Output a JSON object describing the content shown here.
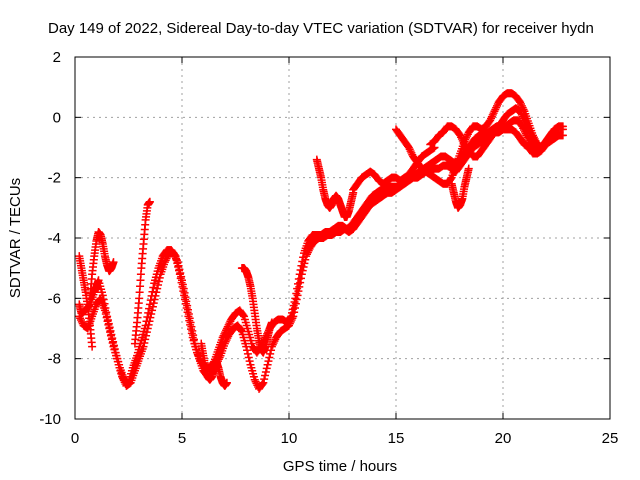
{
  "chart_data": {
    "type": "scatter",
    "title": "Day 149 of 2022, Sidereal Day-to-day VTEC variation (SDTVAR) for receiver hydn",
    "xlabel": "GPS time / hours",
    "ylabel": "SDTVAR / TECUs",
    "xlim": [
      0,
      25
    ],
    "ylim": [
      -10,
      2
    ],
    "xticks": [
      "0",
      "5",
      "10",
      "15",
      "20",
      "25"
    ],
    "yticks": [
      "-10",
      "-8",
      "-6",
      "-4",
      "-2",
      "0",
      "2"
    ],
    "grid": true,
    "marker": "+",
    "series": [
      {
        "name": "SDTVAR",
        "color": "#ff0000",
        "tracks": [
          {
            "x": [
              0.2,
              0.3,
              0.5,
              0.7,
              0.9,
              1.0,
              1.1,
              1.3,
              1.5,
              1.7,
              1.9,
              2.1,
              2.3,
              2.5,
              2.7,
              2.9,
              3.1,
              3.3,
              3.5,
              3.7,
              3.9,
              4.1,
              4.3,
              4.5,
              4.7,
              4.9,
              5.1,
              5.3,
              5.5,
              5.7,
              5.9,
              6.1,
              6.3,
              6.5,
              6.7,
              6.9,
              7.1,
              7.3,
              7.5,
              7.7,
              7.9,
              8.1,
              8.3,
              8.5,
              8.7,
              8.9,
              9.1,
              9.3,
              9.5,
              9.7,
              9.9,
              10.1,
              10.3,
              10.5,
              10.7,
              10.9,
              11.1,
              11.3,
              11.5,
              11.7,
              11.9,
              12.1,
              12.3,
              12.5,
              12.7,
              12.9,
              13.1,
              13.3,
              13.5,
              13.7,
              13.9,
              14.1,
              14.3,
              14.5,
              14.7,
              14.9,
              15.1,
              15.3,
              15.5,
              15.7,
              15.9,
              16.1,
              16.3,
              16.5,
              16.7,
              16.9,
              17.1,
              17.3,
              17.5,
              17.7,
              17.9,
              18.1,
              18.3,
              18.5,
              18.7,
              18.9,
              19.1,
              19.3,
              19.5,
              19.7,
              19.9,
              20.1,
              20.3,
              20.5,
              20.7,
              20.9,
              21.1,
              21.3,
              21.5,
              21.7,
              21.9,
              22.1,
              22.3,
              22.5,
              22.8
            ],
            "y": [
              -6.2,
              -6.5,
              -6.4,
              -6.2,
              -5.8,
              -5.6,
              -5.4,
              -5.9,
              -6.6,
              -7.2,
              -7.8,
              -8.3,
              -8.7,
              -8.8,
              -8.3,
              -7.9,
              -7.4,
              -6.9,
              -6.2,
              -5.5,
              -5.0,
              -4.6,
              -4.4,
              -4.4,
              -4.6,
              -5.2,
              -5.9,
              -6.6,
              -7.3,
              -7.8,
              -8.1,
              -8.3,
              -8.3,
              -8.1,
              -7.7,
              -7.3,
              -7.0,
              -6.7,
              -6.5,
              -6.4,
              -6.6,
              -7.1,
              -7.6,
              -7.8,
              -7.6,
              -7.3,
              -7.0,
              -6.8,
              -6.7,
              -6.7,
              -6.8,
              -6.6,
              -6.0,
              -5.2,
              -4.5,
              -4.1,
              -3.9,
              -3.9,
              -3.9,
              -3.8,
              -3.8,
              -3.7,
              -3.6,
              -3.6,
              -3.7,
              -3.6,
              -3.4,
              -3.2,
              -3.0,
              -2.8,
              -2.6,
              -2.5,
              -2.4,
              -2.3,
              -2.3,
              -2.3,
              -2.3,
              -2.2,
              -2.1,
              -2.0,
              -1.9,
              -1.8,
              -1.7,
              -1.6,
              -1.5,
              -1.4,
              -1.3,
              -1.3,
              -1.4,
              -1.5,
              -1.5,
              -1.3,
              -1.1,
              -0.9,
              -0.7,
              -0.6,
              -0.5,
              -0.5,
              -0.4,
              -0.3,
              -0.3,
              -0.3,
              -0.2,
              -0.1,
              -0.1,
              -0.3,
              -0.6,
              -0.9,
              -1.1,
              -1.1,
              -0.9,
              -0.7,
              -0.5,
              -0.4,
              -0.4
            ]
          },
          {
            "x": [
              0.2,
              0.4,
              0.6,
              0.8,
              1.0,
              1.2,
              1.4,
              1.6,
              1.8,
              2.0,
              2.2,
              2.4,
              2.6,
              2.8,
              3.0,
              3.2,
              3.4,
              3.6,
              3.8,
              4.0,
              4.2,
              4.4,
              4.6,
              4.8,
              5.0,
              5.2,
              5.4,
              5.6,
              5.8,
              6.0,
              6.2,
              6.4,
              6.6,
              6.8,
              7.0,
              7.2,
              7.4,
              7.6,
              7.8,
              8.0,
              8.2,
              8.4,
              8.6,
              8.8,
              9.0,
              9.2,
              9.4,
              9.6,
              9.8,
              10.0,
              10.2,
              10.4,
              10.6,
              10.8,
              11.0,
              11.2,
              11.4,
              11.6,
              11.8,
              12.0,
              12.2,
              12.4,
              12.6,
              12.8,
              13.0,
              13.2,
              13.4,
              13.6,
              13.8,
              14.0,
              14.2,
              14.4,
              14.6,
              14.8,
              15.0,
              15.2,
              15.4,
              15.6,
              15.8,
              16.0,
              16.2,
              16.4,
              16.6,
              16.8,
              17.0,
              17.2,
              17.4,
              17.6,
              17.8,
              18.0,
              18.2,
              18.4,
              18.6,
              18.8,
              19.0,
              19.2,
              19.4,
              19.6,
              19.8,
              20.0,
              20.2,
              20.4,
              20.6,
              20.8,
              21.0,
              21.2,
              21.4,
              21.6,
              21.8,
              22.0,
              22.2,
              22.4,
              22.6,
              22.8
            ],
            "y": [
              -6.6,
              -6.9,
              -7.0,
              -6.6,
              -6.2,
              -6.0,
              -6.4,
              -7.0,
              -7.6,
              -8.1,
              -8.6,
              -8.9,
              -8.8,
              -8.4,
              -8.0,
              -7.6,
              -7.0,
              -6.4,
              -5.8,
              -5.2,
              -4.8,
              -4.5,
              -4.5,
              -4.8,
              -5.4,
              -6.1,
              -6.8,
              -7.5,
              -8.0,
              -8.4,
              -8.6,
              -8.5,
              -8.2,
              -7.9,
              -7.5,
              -7.2,
              -7.0,
              -6.9,
              -7.1,
              -7.6,
              -8.2,
              -8.7,
              -9.0,
              -8.8,
              -8.2,
              -7.6,
              -7.3,
              -7.1,
              -7.0,
              -6.9,
              -6.6,
              -5.9,
              -5.2,
              -4.6,
              -4.3,
              -4.1,
              -4.0,
              -4.0,
              -3.9,
              -3.9,
              -3.8,
              -3.8,
              -3.7,
              -3.8,
              -3.7,
              -3.5,
              -3.3,
              -3.1,
              -2.9,
              -2.8,
              -2.7,
              -2.6,
              -2.5,
              -2.5,
              -2.4,
              -2.3,
              -2.2,
              -2.1,
              -2.0,
              -2.0,
              -1.9,
              -1.8,
              -1.8,
              -1.7,
              -1.7,
              -1.6,
              -1.6,
              -1.7,
              -1.8,
              -1.6,
              -1.4,
              -1.2,
              -1.0,
              -0.9,
              -0.8,
              -0.7,
              -0.6,
              -0.5,
              -0.5,
              -0.4,
              -0.4,
              -0.4,
              -0.5,
              -0.7,
              -0.9,
              -1.0,
              -1.2,
              -1.2,
              -1.1,
              -0.9,
              -0.8,
              -0.7,
              -0.6,
              -0.6
            ]
          },
          {
            "x": [
              0.7,
              0.8,
              0.9,
              1.0,
              1.1,
              1.2,
              1.3,
              1.4,
              1.5,
              1.6,
              1.7,
              1.8
            ],
            "y": [
              -6.0,
              -5.2,
              -4.6,
              -4.1,
              -3.8,
              -3.9,
              -4.2,
              -4.6,
              -4.9,
              -5.1,
              -5.0,
              -4.8
            ]
          },
          {
            "x": [
              2.8,
              2.9,
              3.0,
              3.1,
              3.2,
              3.3,
              3.4,
              3.5
            ],
            "y": [
              -7.5,
              -6.8,
              -6.0,
              -5.0,
              -4.2,
              -3.4,
              -2.9,
              -2.8
            ]
          },
          {
            "x": [
              0.2,
              0.3,
              0.4,
              0.5,
              0.6,
              0.7,
              0.8
            ],
            "y": [
              -4.6,
              -5.0,
              -5.4,
              -5.8,
              -6.3,
              -6.9,
              -7.6
            ]
          },
          {
            "x": [
              7.8,
              7.9,
              8.0,
              8.1,
              8.2,
              8.3,
              8.4,
              8.5,
              8.6,
              8.7,
              8.8,
              8.9,
              9.0,
              9.1,
              9.2
            ],
            "y": [
              -5.0,
              -5.0,
              -5.1,
              -5.3,
              -5.6,
              -6.0,
              -6.5,
              -7.0,
              -7.4,
              -7.7,
              -7.8,
              -7.6,
              -7.3,
              -7.0,
              -6.8
            ]
          },
          {
            "x": [
              5.9,
              6.0,
              6.1,
              6.2,
              6.3,
              6.4,
              6.5,
              6.6,
              6.7,
              6.8,
              6.9,
              7.0,
              7.1
            ],
            "y": [
              -7.5,
              -7.9,
              -8.3,
              -8.6,
              -8.7,
              -8.6,
              -8.3,
              -8.1,
              -8.3,
              -8.6,
              -8.8,
              -8.9,
              -8.8
            ]
          },
          {
            "x": [
              11.3,
              11.4,
              11.5,
              11.6,
              11.7,
              11.8,
              11.9,
              12.0,
              12.1,
              12.2,
              12.3,
              12.4,
              12.5,
              12.6,
              12.7,
              12.8,
              12.9,
              13.0
            ],
            "y": [
              -1.4,
              -1.7,
              -2.0,
              -2.4,
              -2.7,
              -2.9,
              -3.0,
              -2.9,
              -2.7,
              -2.6,
              -2.7,
              -2.9,
              -3.1,
              -3.3,
              -3.3,
              -3.1,
              -2.8,
              -2.5
            ]
          },
          {
            "x": [
              13.0,
              13.2,
              13.4,
              13.6,
              13.8,
              14.0,
              14.2,
              14.4,
              14.6,
              14.8,
              15.0,
              15.2,
              15.4,
              15.6,
              15.8,
              16.0,
              16.2,
              16.4,
              16.6,
              16.8
            ],
            "y": [
              -2.4,
              -2.2,
              -2.0,
              -1.9,
              -1.8,
              -1.9,
              -2.1,
              -2.2,
              -2.1,
              -2.0,
              -2.0,
              -2.1,
              -2.0,
              -1.9,
              -1.7,
              -1.5,
              -1.3,
              -1.2,
              -1.1,
              -1.0
            ]
          },
          {
            "x": [
              15.0,
              15.2,
              15.4,
              15.6,
              15.8,
              16.0,
              16.2,
              16.4,
              16.6,
              16.8,
              17.0,
              17.2,
              17.4,
              17.6,
              17.8,
              18.0,
              18.2,
              18.4,
              18.6,
              18.8,
              19.0,
              19.2,
              19.4,
              19.6,
              19.8,
              20.0,
              20.2,
              20.4,
              20.6,
              20.8,
              21.0,
              21.2,
              21.4,
              21.6,
              21.8,
              22.0,
              22.2,
              22.4,
              22.6,
              22.8
            ],
            "y": [
              -0.4,
              -0.6,
              -0.8,
              -1.0,
              -1.3,
              -1.5,
              -1.7,
              -1.8,
              -1.9,
              -2.0,
              -2.1,
              -2.2,
              -2.2,
              -2.0,
              -1.6,
              -1.2,
              -0.8,
              -0.5,
              -0.3,
              -0.3,
              -0.4,
              -0.3,
              -0.1,
              0.2,
              0.5,
              0.7,
              0.8,
              0.8,
              0.7,
              0.5,
              0.2,
              -0.2,
              -0.6,
              -0.9,
              -1.0,
              -0.8,
              -0.6,
              -0.4,
              -0.3,
              -0.3
            ]
          },
          {
            "x": [
              16.6,
              16.8,
              17.0,
              17.2,
              17.4,
              17.6,
              17.8,
              18.0,
              18.2,
              18.4,
              18.6,
              18.8,
              19.0,
              19.2,
              19.4,
              19.6,
              19.8,
              20.0,
              20.2,
              20.4,
              20.6,
              20.8,
              21.0,
              21.2,
              21.4,
              21.6,
              21.8
            ],
            "y": [
              -0.9,
              -0.8,
              -0.6,
              -0.5,
              -0.3,
              -0.3,
              -0.4,
              -0.6,
              -0.9,
              -1.1,
              -1.3,
              -1.3,
              -1.1,
              -0.9,
              -0.7,
              -0.5,
              -0.3,
              -0.1,
              0.1,
              0.2,
              0.3,
              0.2,
              -0.1,
              -0.4,
              -0.7,
              -0.9,
              -1.0
            ]
          },
          {
            "x": [
              17.6,
              17.7,
              17.8,
              17.9,
              18.0,
              18.1,
              18.2,
              18.3,
              18.4
            ],
            "y": [
              -2.2,
              -2.5,
              -2.8,
              -3.0,
              -2.9,
              -2.7,
              -2.3,
              -2.0,
              -1.7
            ]
          }
        ]
      }
    ]
  }
}
